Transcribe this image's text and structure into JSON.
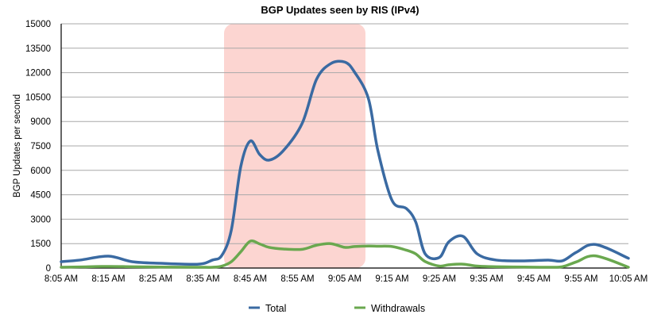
{
  "chart_data": {
    "type": "line",
    "title": "BGP Updates seen by RIS (IPv4)",
    "xlabel": "",
    "ylabel": "BGP Updates per second",
    "ylim": [
      0,
      15000
    ],
    "yticks": [
      0,
      1500,
      3000,
      4500,
      6000,
      7500,
      9000,
      10500,
      12000,
      13500,
      15000
    ],
    "xticks": [
      "8:05 AM",
      "8:15 AM",
      "8:25 AM",
      "8:35 AM",
      "8:45 AM",
      "8:55 AM",
      "9:05 AM",
      "9:15 AM",
      "9:25 AM",
      "9:35 AM",
      "9:45 AM",
      "9:55 AM",
      "10:05 AM"
    ],
    "grid": true,
    "legend_position": "bottom",
    "highlight_region": {
      "from": "8:40 AM",
      "to": "9:10 AM",
      "color": "#fcd5d1"
    },
    "x_minutes_from_805": [
      0,
      4,
      10,
      15,
      21,
      29,
      32,
      34,
      36,
      38,
      40,
      42,
      44,
      47,
      51,
      54,
      57,
      60,
      62,
      65,
      67,
      70,
      73,
      75,
      77,
      80,
      82,
      85,
      88,
      92,
      98,
      103,
      106,
      109,
      113,
      120
    ],
    "series": [
      {
        "name": "Total",
        "color": "#3a6aa2",
        "values": [
          390,
          490,
          730,
          390,
          290,
          240,
          490,
          780,
          2340,
          6240,
          7800,
          6970,
          6630,
          7210,
          8900,
          11580,
          12550,
          12650,
          12060,
          10400,
          7210,
          4150,
          3660,
          2830,
          870,
          650,
          1610,
          1950,
          870,
          490,
          440,
          490,
          440,
          970,
          1450,
          600
        ]
      },
      {
        "name": "Withdrawals",
        "color": "#6aa84f",
        "values": [
          50,
          70,
          100,
          80,
          60,
          50,
          50,
          120,
          390,
          1000,
          1650,
          1480,
          1270,
          1170,
          1150,
          1400,
          1500,
          1270,
          1320,
          1350,
          1340,
          1320,
          1100,
          870,
          400,
          120,
          200,
          240,
          120,
          80,
          60,
          50,
          80,
          380,
          750,
          50
        ]
      }
    ]
  },
  "legend": {
    "total_label": "Total",
    "withdrawals_label": "Withdrawals"
  }
}
